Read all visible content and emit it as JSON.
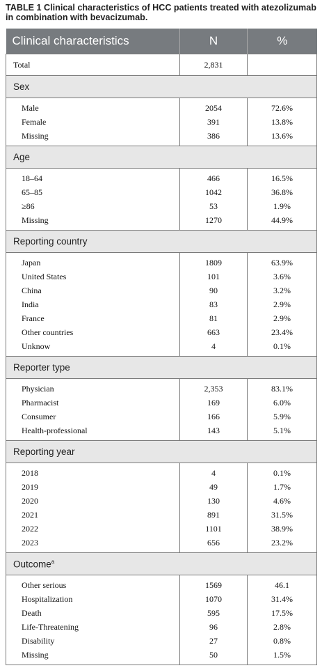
{
  "caption": {
    "label": "TABLE 1",
    "text": " Clinical characteristics of HCC patients treated with atezolizumab in combination with bevacizumab."
  },
  "headers": [
    "Clinical characteristics",
    "N",
    "%"
  ],
  "total": {
    "label": "Total",
    "n": "2,831",
    "pct": ""
  },
  "sections": [
    {
      "title": "Sex",
      "sup": "",
      "rows": [
        [
          "Male",
          "2054",
          "72.6%"
        ],
        [
          "Female",
          "391",
          "13.8%"
        ],
        [
          "Missing",
          "386",
          "13.6%"
        ]
      ]
    },
    {
      "title": "Age",
      "sup": "",
      "rows": [
        [
          "18–64",
          "466",
          "16.5%"
        ],
        [
          "65–85",
          "1042",
          "36.8%"
        ],
        [
          "≥86",
          "53",
          "1.9%"
        ],
        [
          "Missing",
          "1270",
          "44.9%"
        ]
      ]
    },
    {
      "title": "Reporting country",
      "sup": "",
      "rows": [
        [
          "Japan",
          "1809",
          "63.9%"
        ],
        [
          "United States",
          "101",
          "3.6%"
        ],
        [
          "China",
          "90",
          "3.2%"
        ],
        [
          "India",
          "83",
          "2.9%"
        ],
        [
          "France",
          "81",
          "2.9%"
        ],
        [
          "Other countries",
          "663",
          "23.4%"
        ],
        [
          "Unknow",
          "4",
          "0.1%"
        ]
      ]
    },
    {
      "title": "Reporter type",
      "sup": "",
      "rows": [
        [
          "Physician",
          "2,353",
          "83.1%"
        ],
        [
          "Pharmacist",
          "169",
          "6.0%"
        ],
        [
          "Consumer",
          "166",
          "5.9%"
        ],
        [
          "Health-professional",
          "143",
          "5.1%"
        ]
      ]
    },
    {
      "title": "Reporting year",
      "sup": "",
      "rows": [
        [
          "2018",
          "4",
          "0.1%"
        ],
        [
          "2019",
          "49",
          "1.7%"
        ],
        [
          "2020",
          "130",
          "4.6%"
        ],
        [
          "2021",
          "891",
          "31.5%"
        ],
        [
          "2022",
          "1101",
          "38.9%"
        ],
        [
          "2023",
          "656",
          "23.2%"
        ]
      ]
    },
    {
      "title": "Outcome",
      "sup": "a",
      "rows": [
        [
          "Other serious",
          "1569",
          "46.1"
        ],
        [
          "Hospitalization",
          "1070",
          "31.4%"
        ],
        [
          "Death",
          "595",
          "17.5%"
        ],
        [
          "Life-Threatening",
          "96",
          "2.8%"
        ],
        [
          "Disability",
          "27",
          "0.8%"
        ],
        [
          "Missing",
          "50",
          "1.5%"
        ]
      ]
    }
  ]
}
